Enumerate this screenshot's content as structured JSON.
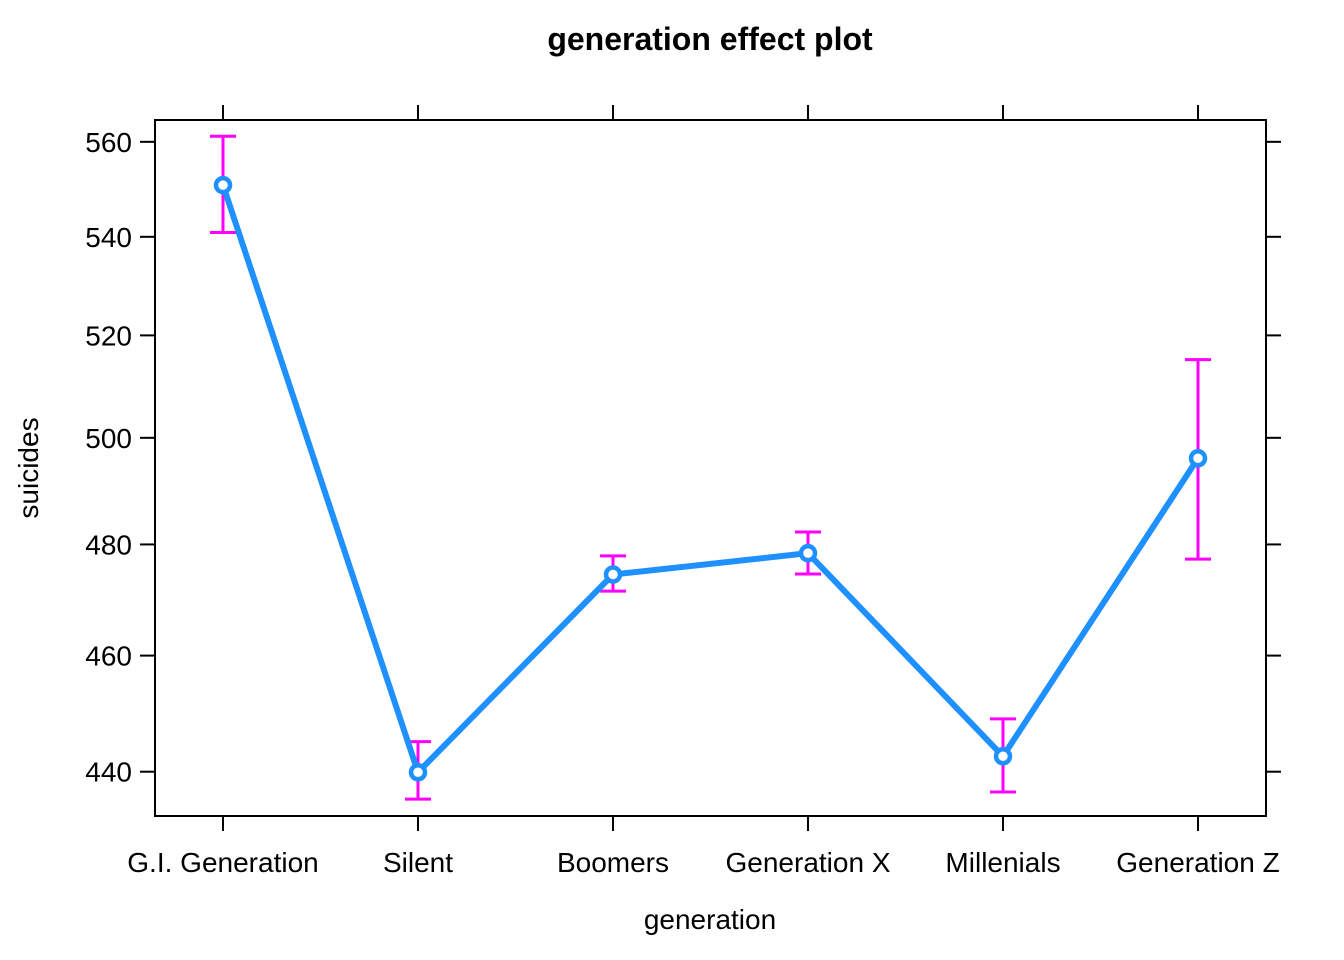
{
  "chart_data": {
    "type": "line",
    "title": "generation effect plot",
    "xlabel": "generation",
    "ylabel": "suicides",
    "categories": [
      "G.I. Generation",
      "Silent",
      "Boomers",
      "Generation X",
      "Millenials",
      "Generation Z"
    ],
    "series": [
      {
        "name": "generation effect",
        "values": [
          550.8,
          439.9,
          474.5,
          478.4,
          442.6,
          496.1
        ]
      }
    ],
    "error_bars": {
      "lower": [
        540.9,
        435.4,
        471.5,
        474.6,
        436.6,
        477.3
      ],
      "upper": [
        561.2,
        445.1,
        477.9,
        482.3,
        449.0,
        515.2
      ]
    },
    "y_ticks": [
      440,
      460,
      480,
      500,
      520,
      540,
      560
    ],
    "y_scale": "log",
    "ylim": [
      432.6,
      564.7
    ],
    "grid": false,
    "legend": "none",
    "line_color": "#1E90FF",
    "marker": "open-circle",
    "errorbar_color": "#FF00FF",
    "axis_color": "#000000"
  }
}
